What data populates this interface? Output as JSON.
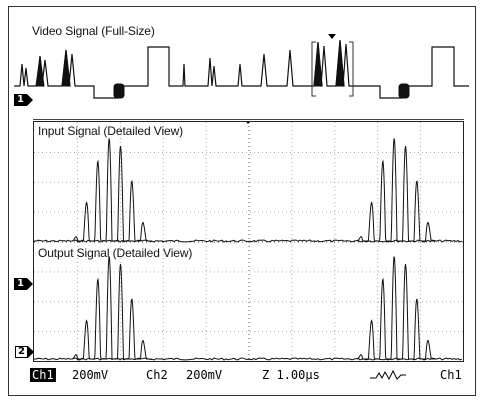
{
  "overview": {
    "title": "Video Signal (Full-Size)",
    "marker": "1"
  },
  "input_panel": {
    "title": "Input Signal (Detailed View)"
  },
  "output_panel": {
    "title": "Output Signal (Detailed View)",
    "marker_ch1": "1",
    "marker_ch2": "2"
  },
  "status_bar": {
    "ch1_label": "Ch1",
    "ch1_scale": "200mV",
    "ch2_label": "Ch2",
    "ch2_scale": "200mV",
    "timebase": "Z 1.00µs",
    "trigger_source": "Ch1"
  },
  "colors": {
    "trace": "#111111",
    "grid": "#9a9a9a",
    "marker_fill": "#000000"
  }
}
